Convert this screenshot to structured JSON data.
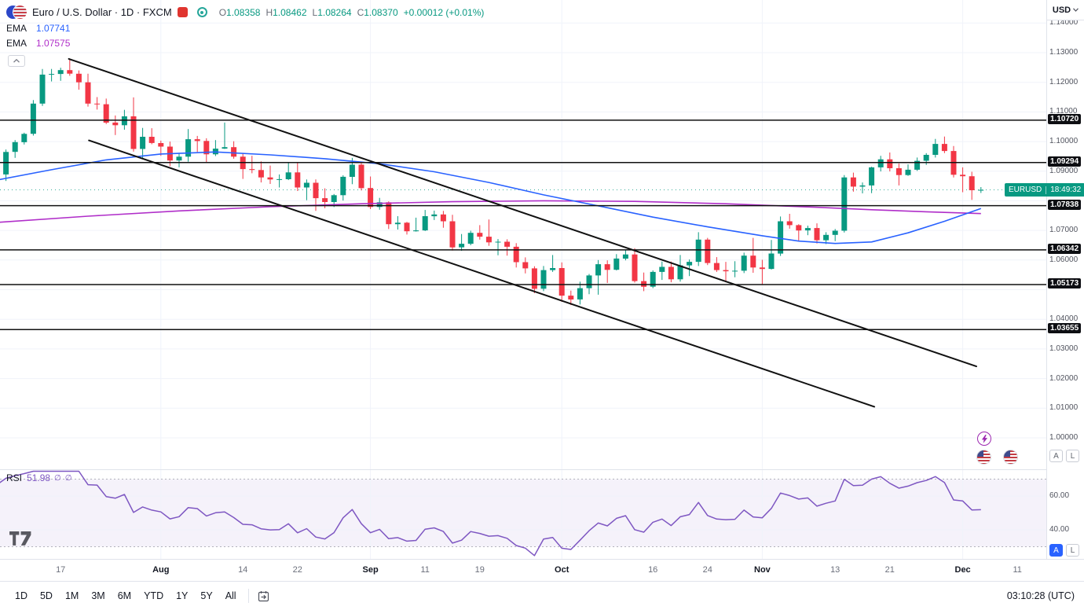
{
  "colors": {
    "up": "#089981",
    "down": "#f23645",
    "ema_fast": "#2962ff",
    "ema_slow": "#b02ec9",
    "rsi": "#7e57c2",
    "level": "#111111",
    "accent": "#2962ff",
    "grid": "#f0f3fa"
  },
  "header": {
    "symbol_title": "Euro / U.S. Dollar · 1D · FXCM",
    "ohlc": {
      "open_label": "O",
      "open": "1.08358",
      "high_label": "H",
      "high": "1.08462",
      "low_label": "L",
      "low": "1.08264",
      "close_label": "C",
      "close": "1.08370",
      "change": "+0.00012 (+0.01%)"
    },
    "indicators": [
      {
        "name": "EMA",
        "value": "1.07741"
      },
      {
        "name": "EMA",
        "value": "1.07575"
      }
    ]
  },
  "axis": {
    "unit": "USD",
    "scale_buttons": [
      "A",
      "L"
    ],
    "price_badge": {
      "symbol": "EURUSD",
      "countdown": "18:49:32",
      "price": 1.0837
    },
    "price_labels": [
      {
        "p": 1.14,
        "t": "1.14000"
      },
      {
        "p": 1.13,
        "t": "1.13000"
      },
      {
        "p": 1.12,
        "t": "1.12000"
      },
      {
        "p": 1.11,
        "t": "1.11000"
      },
      {
        "p": 1.1,
        "t": "1.10000"
      },
      {
        "p": 1.09,
        "t": "1.09000"
      },
      {
        "p": 1.07,
        "t": "1.07000"
      },
      {
        "p": 1.06,
        "t": "1.06000"
      },
      {
        "p": 1.04,
        "t": "1.04000"
      },
      {
        "p": 1.03,
        "t": "1.03000"
      },
      {
        "p": 1.02,
        "t": "1.02000"
      },
      {
        "p": 1.01,
        "t": "1.01000"
      },
      {
        "p": 1.0,
        "t": "1.00000"
      }
    ],
    "level_labels": [
      {
        "p": 1.1072,
        "t": "1.10720"
      },
      {
        "p": 1.09294,
        "t": "1.09294"
      },
      {
        "p": 1.07838,
        "t": "1.07838"
      },
      {
        "p": 1.06342,
        "t": "1.06342"
      },
      {
        "p": 1.05173,
        "t": "1.05173"
      },
      {
        "p": 1.03655,
        "t": "1.03655"
      }
    ],
    "rsi_labels": [
      {
        "v": 60,
        "t": "60.00"
      },
      {
        "v": 40,
        "t": "40.00"
      }
    ]
  },
  "rsi": {
    "name": "RSI",
    "value": "51.98",
    "args": [
      "∅",
      "∅"
    ]
  },
  "toolbar": {
    "ranges": [
      "1D",
      "5D",
      "1M",
      "3M",
      "6M",
      "YTD",
      "1Y",
      "5Y",
      "All"
    ],
    "timestamp": "03:10:28 (UTC)"
  },
  "chart_data": {
    "type": "candlestick",
    "title": "Euro / U.S. Dollar",
    "symbol": "EURUSD",
    "interval": "1D",
    "exchange": "FXCM",
    "price_axis": {
      "min": 1.0,
      "max": 1.14,
      "step": 0.01
    },
    "levels": [
      1.1072,
      1.09294,
      1.07838,
      1.06342,
      1.05173,
      1.03655
    ],
    "month_indices": [
      18,
      41,
      62,
      84,
      106
    ],
    "time_labels": [
      {
        "i": 7,
        "t": "17"
      },
      {
        "i": 18,
        "t": "Aug"
      },
      {
        "i": 27,
        "t": "14"
      },
      {
        "i": 33,
        "t": "22"
      },
      {
        "i": 41,
        "t": "Sep"
      },
      {
        "i": 47,
        "t": "11"
      },
      {
        "i": 53,
        "t": "19"
      },
      {
        "i": 62,
        "t": "Oct"
      },
      {
        "i": 72,
        "t": "16"
      },
      {
        "i": 78,
        "t": "24"
      },
      {
        "i": 84,
        "t": "Nov"
      },
      {
        "i": 92,
        "t": "13"
      },
      {
        "i": 98,
        "t": "21"
      },
      {
        "i": 106,
        "t": "Dec"
      },
      {
        "i": 112,
        "t": "11"
      }
    ],
    "trendlines": [
      {
        "i1": 7.9,
        "p1": 1.1279,
        "i2": 107.5,
        "p2": 1.0241
      },
      {
        "i1": 10.1,
        "p1": 1.1004,
        "i2": 96.3,
        "p2": 1.0105
      }
    ],
    "ema_fast_points": [
      [
        0,
        1.087
      ],
      [
        6,
        1.0905
      ],
      [
        12,
        1.0938
      ],
      [
        18,
        1.0958
      ],
      [
        24,
        1.0965
      ],
      [
        30,
        1.0955
      ],
      [
        36,
        1.0942
      ],
      [
        42,
        1.0925
      ],
      [
        48,
        1.0898
      ],
      [
        54,
        1.0862
      ],
      [
        60,
        1.082
      ],
      [
        66,
        1.0783
      ],
      [
        72,
        1.0745
      ],
      [
        78,
        1.0712
      ],
      [
        84,
        1.0682
      ],
      [
        88,
        1.0664
      ],
      [
        92,
        1.0656
      ],
      [
        96,
        1.0661
      ],
      [
        100,
        1.0692
      ],
      [
        104,
        1.0731
      ],
      [
        108,
        1.0774
      ]
    ],
    "ema_slow_points": [
      [
        0,
        1.0727
      ],
      [
        10,
        1.0748
      ],
      [
        20,
        1.0766
      ],
      [
        30,
        1.078
      ],
      [
        40,
        1.079
      ],
      [
        50,
        1.0797
      ],
      [
        60,
        1.08
      ],
      [
        70,
        1.0798
      ],
      [
        80,
        1.079
      ],
      [
        90,
        1.0778
      ],
      [
        96,
        1.077
      ],
      [
        102,
        1.0763
      ],
      [
        108,
        1.0757
      ]
    ],
    "rsi_settings": {
      "period": 14,
      "seed_avg_gain": 0.003,
      "seed_avg_loss": 0.0015,
      "upper_band": 70,
      "lower_band": 30,
      "last": 51.98
    },
    "candles": [
      [
        1.0888,
        1.0901,
        1.0834,
        1.0889
      ],
      [
        1.0889,
        1.0973,
        1.0867,
        1.0965
      ],
      [
        1.0965,
        1.1005,
        1.0945,
        1.0998
      ],
      [
        1.0998,
        1.103,
        1.099,
        1.1026
      ],
      [
        1.1026,
        1.114,
        1.102,
        1.1128
      ],
      [
        1.1128,
        1.1245,
        1.112,
        1.1226
      ],
      [
        1.1226,
        1.1245,
        1.1203,
        1.1228
      ],
      [
        1.1228,
        1.1249,
        1.1205,
        1.1241
      ],
      [
        1.1241,
        1.1276,
        1.1222,
        1.1229
      ],
      [
        1.1229,
        1.124,
        1.1175,
        1.12
      ],
      [
        1.12,
        1.1229,
        1.1118,
        1.1128
      ],
      [
        1.1128,
        1.115,
        1.1108,
        1.1126
      ],
      [
        1.1126,
        1.1145,
        1.1059,
        1.1064
      ],
      [
        1.1064,
        1.1088,
        1.1022,
        1.1055
      ],
      [
        1.1055,
        1.1107,
        1.104,
        1.1085
      ],
      [
        1.1085,
        1.1149,
        1.0966,
        1.0975
      ],
      [
        1.0975,
        1.1046,
        1.0943,
        1.1016
      ],
      [
        1.1016,
        1.1045,
        1.0991,
        1.0995
      ],
      [
        1.0995,
        1.1003,
        1.0952,
        1.0983
      ],
      [
        1.0983,
        1.1,
        1.0917,
        1.0936
      ],
      [
        1.0936,
        1.0962,
        1.0913,
        1.0949
      ],
      [
        1.0949,
        1.1042,
        1.0932,
        1.1008
      ],
      [
        1.1008,
        1.1019,
        1.0965,
        1.1002
      ],
      [
        1.1002,
        1.1011,
        1.0929,
        1.0957
      ],
      [
        1.0957,
        1.1005,
        1.0951,
        1.0976
      ],
      [
        1.0976,
        1.1064,
        1.0975,
        1.0981
      ],
      [
        1.0981,
        1.1001,
        1.0942,
        1.0949
      ],
      [
        1.0949,
        1.096,
        1.0874,
        1.0907
      ],
      [
        1.0907,
        1.0952,
        1.0893,
        1.0904
      ],
      [
        1.0904,
        1.0933,
        1.0862,
        1.0879
      ],
      [
        1.0879,
        1.0919,
        1.0857,
        1.0872
      ],
      [
        1.0872,
        1.0889,
        1.0845,
        1.0873
      ],
      [
        1.0873,
        1.0931,
        1.087,
        1.0896
      ],
      [
        1.0896,
        1.093,
        1.0833,
        1.0845
      ],
      [
        1.0845,
        1.0872,
        1.0802,
        1.0861
      ],
      [
        1.0861,
        1.0872,
        1.0766,
        1.0809
      ],
      [
        1.0809,
        1.0842,
        1.0775,
        1.0796
      ],
      [
        1.0796,
        1.0823,
        1.0779,
        1.0819
      ],
      [
        1.0819,
        1.0886,
        1.0801,
        1.0881
      ],
      [
        1.0881,
        1.0945,
        1.0856,
        1.0922
      ],
      [
        1.0922,
        1.0927,
        1.0835,
        1.0843
      ],
      [
        1.0843,
        1.0882,
        1.0772,
        1.0779
      ],
      [
        1.0779,
        1.081,
        1.077,
        1.0795
      ],
      [
        1.0795,
        1.0798,
        1.0705,
        1.0721
      ],
      [
        1.0721,
        1.0748,
        1.0703,
        1.0726
      ],
      [
        1.0726,
        1.0729,
        1.0686,
        1.0697
      ],
      [
        1.0697,
        1.0743,
        1.0696,
        1.07
      ],
      [
        1.07,
        1.0769,
        1.0698,
        1.0748
      ],
      [
        1.0748,
        1.0767,
        1.0735,
        1.0754
      ],
      [
        1.0754,
        1.0766,
        1.0709,
        1.0731
      ],
      [
        1.0731,
        1.0753,
        1.0632,
        1.0643
      ],
      [
        1.0643,
        1.0688,
        1.0631,
        1.0655
      ],
      [
        1.0655,
        1.0699,
        1.065,
        1.0692
      ],
      [
        1.0692,
        1.0718,
        1.0669,
        1.0679
      ],
      [
        1.0679,
        1.0737,
        1.0648,
        1.066
      ],
      [
        1.066,
        1.0671,
        1.0616,
        1.0662
      ],
      [
        1.0662,
        1.067,
        1.0615,
        1.0645
      ],
      [
        1.0645,
        1.0657,
        1.0575,
        1.0593
      ],
      [
        1.0593,
        1.0609,
        1.0555,
        1.0572
      ],
      [
        1.0572,
        1.0579,
        1.0488,
        1.0503
      ],
      [
        1.0503,
        1.058,
        1.0495,
        1.0566
      ],
      [
        1.0566,
        1.0617,
        1.056,
        1.0573
      ],
      [
        1.0573,
        1.0592,
        1.0459,
        1.048
      ],
      [
        1.048,
        1.0497,
        1.0448,
        1.0467
      ],
      [
        1.0467,
        1.0527,
        1.045,
        1.0505
      ],
      [
        1.0505,
        1.0553,
        1.0485,
        1.0548
      ],
      [
        1.0548,
        1.06,
        1.0483,
        1.0586
      ],
      [
        1.0586,
        1.0599,
        1.0523,
        1.0567
      ],
      [
        1.0567,
        1.062,
        1.0565,
        1.0605
      ],
      [
        1.0605,
        1.0634,
        1.0599,
        1.0619
      ],
      [
        1.0619,
        1.064,
        1.0524,
        1.0529
      ],
      [
        1.0529,
        1.0558,
        1.0495,
        1.051
      ],
      [
        1.051,
        1.0565,
        1.0505,
        1.056
      ],
      [
        1.056,
        1.0595,
        1.0533,
        1.0577
      ],
      [
        1.0577,
        1.0595,
        1.0525,
        1.0535
      ],
      [
        1.0535,
        1.0617,
        1.0527,
        1.0582
      ],
      [
        1.0582,
        1.0602,
        1.0546,
        1.0594
      ],
      [
        1.0594,
        1.0694,
        1.058,
        1.0669
      ],
      [
        1.0669,
        1.0675,
        1.0583,
        1.059
      ],
      [
        1.059,
        1.061,
        1.056,
        1.0566
      ],
      [
        1.0566,
        1.0594,
        1.0525,
        1.0562
      ],
      [
        1.0562,
        1.0596,
        1.0542,
        1.0564
      ],
      [
        1.0564,
        1.0625,
        1.0556,
        1.0615
      ],
      [
        1.0615,
        1.0675,
        1.0557,
        1.0575
      ],
      [
        1.0575,
        1.0601,
        1.0516,
        1.057
      ],
      [
        1.057,
        1.0668,
        1.0568,
        1.0622
      ],
      [
        1.0622,
        1.0747,
        1.0614,
        1.0731
      ],
      [
        1.0731,
        1.0756,
        1.0706,
        1.0718
      ],
      [
        1.0718,
        1.0721,
        1.0664,
        1.07
      ],
      [
        1.07,
        1.0716,
        1.0684,
        1.0708
      ],
      [
        1.0708,
        1.0724,
        1.0656,
        1.0667
      ],
      [
        1.0667,
        1.0694,
        1.0654,
        1.0685
      ],
      [
        1.0685,
        1.0705,
        1.0664,
        1.0699
      ],
      [
        1.0699,
        1.0887,
        1.0693,
        1.0879
      ],
      [
        1.0879,
        1.0895,
        1.0831,
        1.0848
      ],
      [
        1.0848,
        1.0862,
        1.0825,
        1.0852
      ],
      [
        1.0852,
        1.0915,
        1.0826,
        1.0913
      ],
      [
        1.0913,
        1.0952,
        1.0899,
        1.094
      ],
      [
        1.094,
        1.0963,
        1.0899,
        1.091
      ],
      [
        1.091,
        1.0926,
        1.0852,
        1.0887
      ],
      [
        1.0887,
        1.0923,
        1.0884,
        1.0905
      ],
      [
        1.0905,
        1.0946,
        1.0901,
        1.0935
      ],
      [
        1.0935,
        1.0961,
        1.0921,
        1.0955
      ],
      [
        1.0955,
        1.1009,
        1.0946,
        1.0992
      ],
      [
        1.0992,
        1.1017,
        1.0961,
        1.0968
      ],
      [
        1.0968,
        1.0985,
        1.0879,
        1.0888
      ],
      [
        1.0888,
        1.0913,
        1.0829,
        1.0883
      ],
      [
        1.0883,
        1.0898,
        1.0803,
        1.08358
      ],
      [
        1.08358,
        1.08462,
        1.08264,
        1.0837
      ]
    ]
  }
}
